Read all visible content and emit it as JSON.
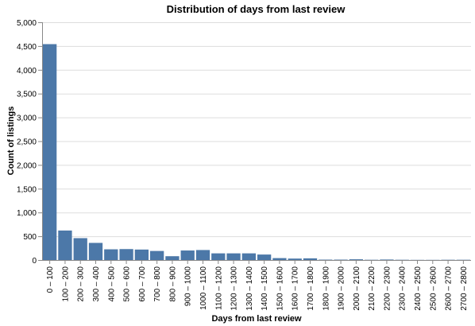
{
  "chart_data": {
    "type": "bar",
    "title": "Distribution of days from last review",
    "xlabel": "Days from last review",
    "ylabel": "Count of listings",
    "ylim": [
      0,
      5000
    ],
    "yticks": [
      "0",
      "500",
      "1,000",
      "1,500",
      "2,000",
      "2,500",
      "3,000",
      "3,500",
      "4,000",
      "4,500",
      "5,000"
    ],
    "ytick_values": [
      0,
      500,
      1000,
      1500,
      2000,
      2500,
      3000,
      3500,
      4000,
      4500,
      5000
    ],
    "grid": true,
    "bar_color": "#4c78a8",
    "categories": [
      "0 – 100",
      "100 – 200",
      "200 – 300",
      "300 – 400",
      "400 – 500",
      "500 – 600",
      "600 – 700",
      "700 – 800",
      "800 – 900",
      "900 – 1000",
      "1000 – 1100",
      "1100 – 1200",
      "1200 – 1300",
      "1300 – 1400",
      "1400 – 1500",
      "1500 – 1600",
      "1600 – 1700",
      "1700 – 1800",
      "1800 – 1900",
      "1900 – 2000",
      "2000 – 2100",
      "2100 – 2200",
      "2200 – 2300",
      "2300 – 2400",
      "2400 – 2500",
      "2500 – 2600",
      "2600 – 2700",
      "2700 – 2800"
    ],
    "values": [
      4540,
      620,
      460,
      360,
      225,
      230,
      220,
      190,
      80,
      200,
      210,
      140,
      140,
      140,
      115,
      40,
      30,
      35,
      8,
      8,
      15,
      5,
      10,
      5,
      3,
      3,
      5,
      5
    ]
  }
}
